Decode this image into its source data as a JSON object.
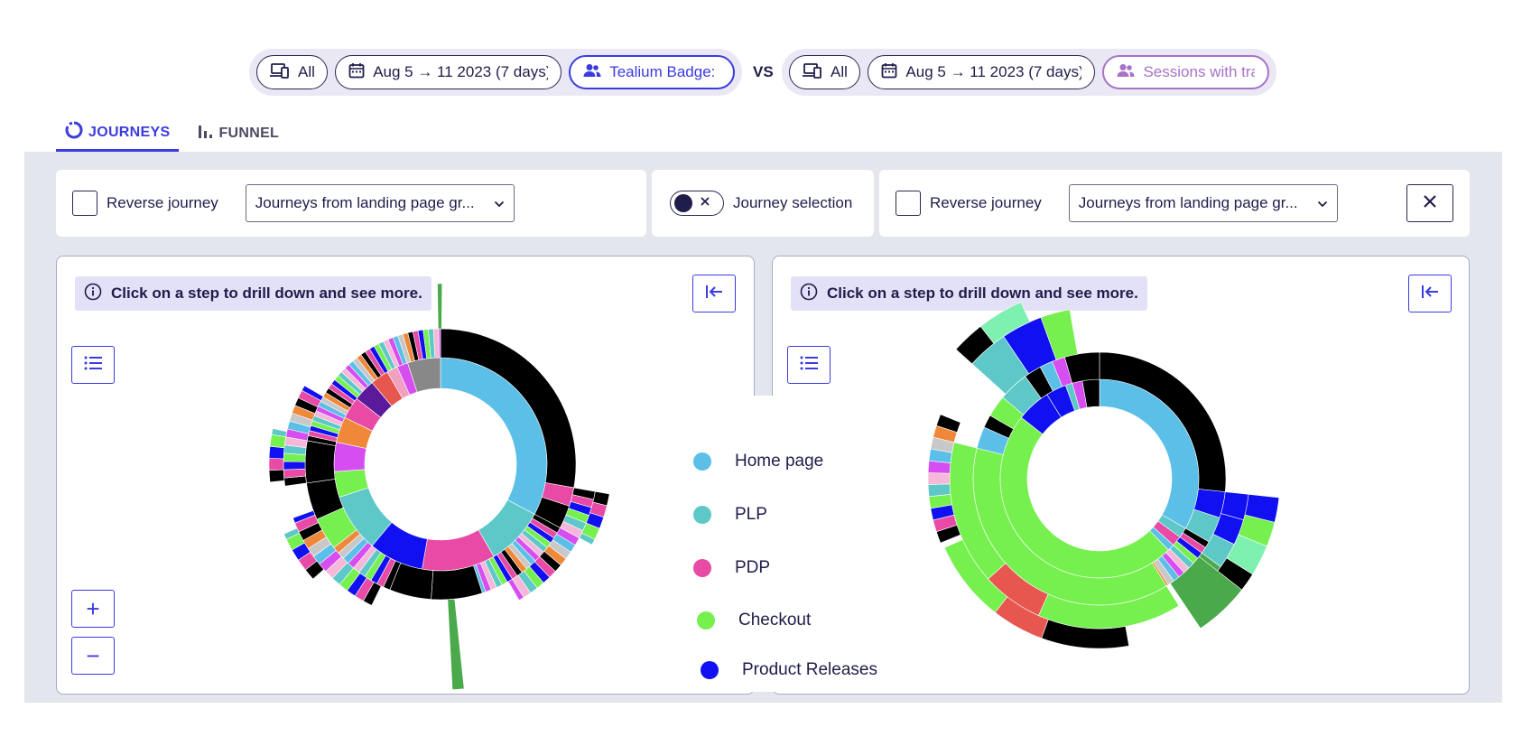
{
  "filters": {
    "left": {
      "device": "All",
      "date_range": "Aug 5 → 11 2023 (7 days)",
      "segment": "Tealium Badge: "
    },
    "vs_label": "VS",
    "right": {
      "device": "All",
      "date_range": "Aug 5 → 11 2023 (7 days)",
      "segment": "Sessions with tra"
    }
  },
  "tabs": [
    {
      "label": "JOURNEYS",
      "active": true
    },
    {
      "label": "FUNNEL",
      "active": false
    }
  ],
  "controls": {
    "left": {
      "reverse_label": "Reverse journey",
      "select_value": "Journeys from landing page gr..."
    },
    "journey_selection_label": "Journey selection",
    "right": {
      "reverse_label": "Reverse journey",
      "select_value": "Journeys from landing page gr..."
    }
  },
  "cards": {
    "left": {
      "hint": "Click on a step to drill down and see more."
    },
    "right": {
      "hint": "Click on a step to drill down and see more."
    }
  },
  "zoom": {
    "in_label": "+",
    "out_label": "−"
  },
  "legend": [
    {
      "label": "Home page",
      "color": "#5bbfe8"
    },
    {
      "label": "PLP",
      "color": "#5ec8c8"
    },
    {
      "label": "PDP",
      "color": "#e84aa5"
    },
    {
      "label": "Checkout",
      "color": "#76f04e"
    },
    {
      "label": "Product Releases",
      "color": "#1010f0"
    }
  ],
  "colors": {
    "accent": "#3b3be0",
    "segment_purple": "#a773c8",
    "black_step": "#000000",
    "red_step": "#e8574f",
    "dark_green_step": "#4aa94a",
    "orange_step": "#f0883a",
    "violet_step": "#d64ef0",
    "indigo_step": "#5a1a9a"
  }
}
